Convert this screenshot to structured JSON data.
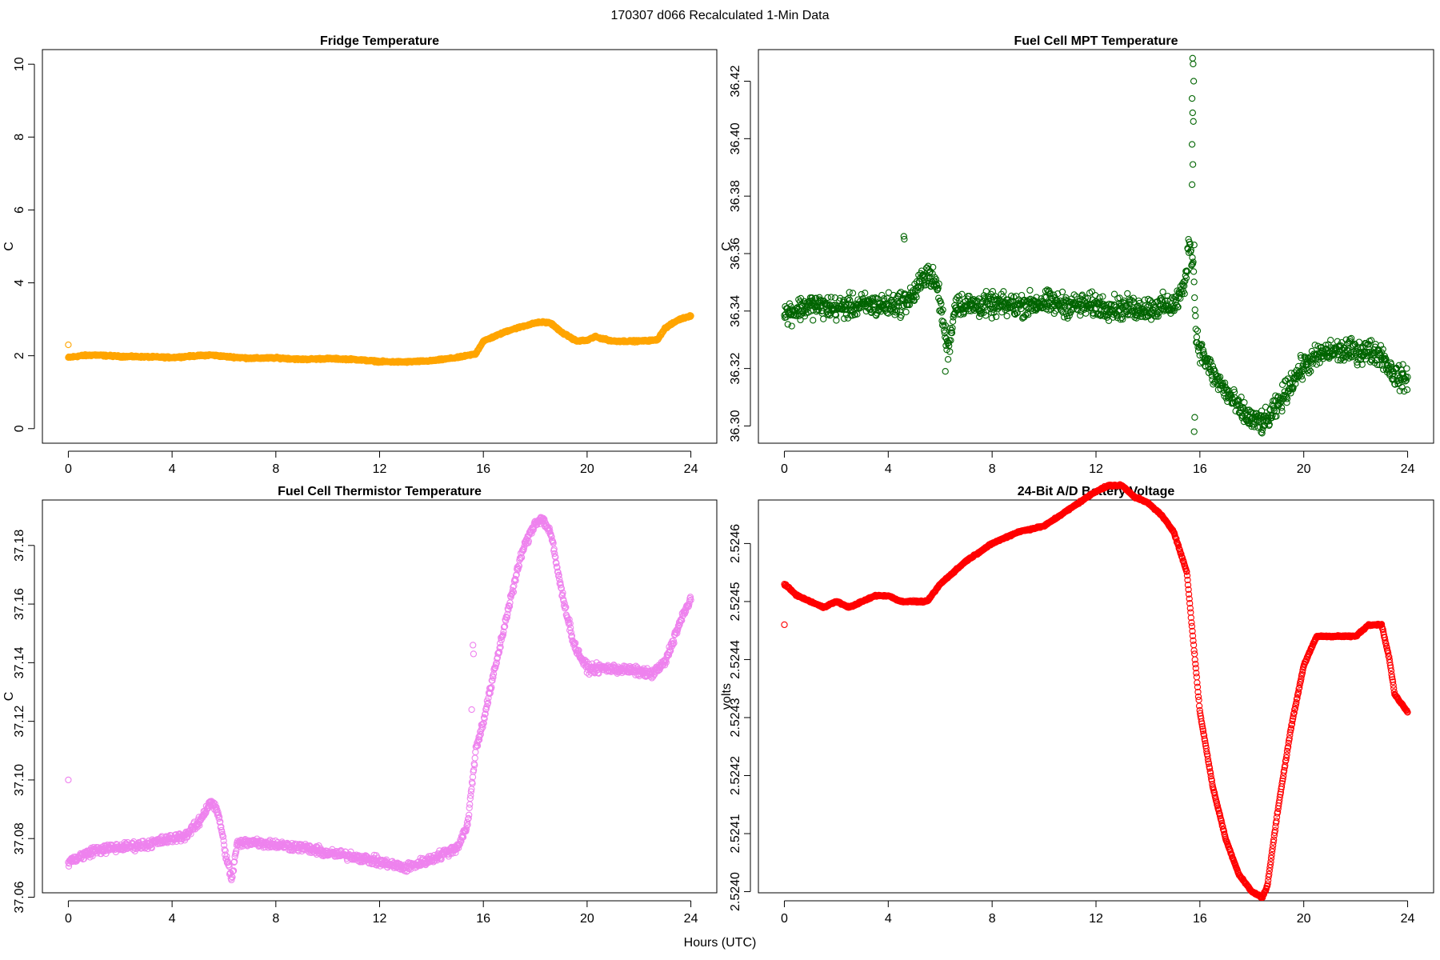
{
  "figure": {
    "title": "170307   d066   Recalculated 1-Min Data",
    "xlabel": "Hours (UTC)"
  },
  "chart_data": [
    {
      "type": "scatter",
      "title": "Fridge Temperature",
      "ylabel": "C",
      "color": "#FFA500",
      "xlim": [
        -1,
        25
      ],
      "ylim": [
        -0.4,
        10.4
      ],
      "xticks": [
        "0",
        "4",
        "8",
        "12",
        "16",
        "20",
        "24"
      ],
      "yticks": [
        "0",
        "2",
        "4",
        "6",
        "8",
        "10"
      ],
      "outliers": [
        [
          0.0,
          2.3
        ]
      ],
      "series": [
        {
          "x": [
            0,
            0.5,
            1,
            2,
            3,
            4,
            5,
            5.5,
            6,
            7,
            8,
            9,
            10,
            11,
            12,
            12.5,
            13,
            14,
            15,
            15.7,
            16,
            17,
            18,
            18.3,
            18.6,
            19,
            19.6,
            20,
            20.3,
            20.7,
            21,
            22,
            22.7,
            23,
            23.5,
            24
          ],
          "y": [
            1.95,
            2.0,
            2.02,
            1.98,
            1.97,
            1.95,
            2.0,
            2.02,
            1.98,
            1.93,
            1.94,
            1.9,
            1.92,
            1.9,
            1.84,
            1.83,
            1.83,
            1.86,
            1.95,
            2.05,
            2.4,
            2.7,
            2.9,
            2.92,
            2.9,
            2.65,
            2.4,
            2.42,
            2.52,
            2.45,
            2.4,
            2.4,
            2.43,
            2.75,
            2.98,
            3.1
          ],
          "density": 1440,
          "jitter": 0.02
        }
      ]
    },
    {
      "type": "scatter",
      "title": "Fuel Cell MPT Temperature",
      "ylabel": "C",
      "color": "#006400",
      "xlim": [
        -1,
        25
      ],
      "ylim": [
        36.294,
        36.431
      ],
      "xticks": [
        "0",
        "4",
        "8",
        "12",
        "16",
        "20",
        "24"
      ],
      "yticks": [
        "36.30",
        "36.32",
        "36.34",
        "36.36",
        "36.38",
        "36.40",
        "36.42"
      ],
      "outliers": [
        [
          4.6,
          36.366
        ],
        [
          4.62,
          36.365
        ],
        [
          15.72,
          36.428
        ],
        [
          15.74,
          36.426
        ],
        [
          15.76,
          36.42
        ],
        [
          15.7,
          36.414
        ],
        [
          15.72,
          36.409
        ],
        [
          15.75,
          36.406
        ],
        [
          15.7,
          36.398
        ],
        [
          15.73,
          36.391
        ],
        [
          15.7,
          36.384
        ],
        [
          15.78,
          36.363
        ],
        [
          15.8,
          36.303
        ],
        [
          15.78,
          36.298
        ],
        [
          6.2,
          36.319
        ]
      ],
      "series": [
        {
          "x": [
            0,
            1,
            2,
            3,
            4,
            4.6,
            5,
            5.5,
            5.9,
            6.1,
            6.3,
            6.6,
            7,
            8,
            9,
            10,
            11,
            12,
            13,
            14,
            15,
            15.4,
            15.6,
            15.75,
            15.85,
            16,
            16.5,
            17,
            17.5,
            18,
            18.5,
            19,
            19.5,
            20,
            20.5,
            21,
            22,
            22.5,
            23,
            23.3,
            23.6,
            24
          ],
          "y": [
            36.339,
            36.342,
            36.341,
            36.342,
            36.342,
            36.343,
            36.346,
            36.354,
            36.348,
            36.337,
            36.326,
            36.343,
            36.342,
            36.342,
            36.342,
            36.343,
            36.342,
            36.342,
            36.341,
            36.341,
            36.342,
            36.348,
            36.365,
            36.356,
            36.332,
            36.327,
            36.318,
            36.312,
            36.306,
            36.302,
            36.301,
            36.307,
            36.315,
            36.321,
            36.324,
            36.326,
            36.326,
            36.326,
            36.325,
            36.32,
            36.317,
            36.316
          ],
          "density": 1440,
          "jitter": 0.0035
        }
      ]
    },
    {
      "type": "scatter",
      "title": "Fuel Cell Thermistor Temperature",
      "ylabel": "C",
      "color": "#EE82EE",
      "xlim": [
        -1,
        25
      ],
      "ylim": [
        37.0615,
        37.1955
      ],
      "xticks": [
        "0",
        "4",
        "8",
        "12",
        "16",
        "20",
        "24"
      ],
      "yticks": [
        "37.06",
        "37.08",
        "37.10",
        "37.12",
        "37.14",
        "37.16",
        "37.18"
      ],
      "outliers": [
        [
          0.0,
          37.1
        ],
        [
          15.6,
          37.146
        ],
        [
          15.62,
          37.143
        ],
        [
          15.55,
          37.124
        ]
      ],
      "series": [
        {
          "x": [
            0,
            1,
            2,
            3,
            4,
            4.5,
            5,
            5.5,
            5.8,
            6.1,
            6.3,
            6.5,
            7,
            8,
            9,
            10,
            11,
            12,
            13,
            14,
            15,
            15.4,
            15.7,
            16,
            16.5,
            17,
            17.5,
            18,
            18.3,
            18.6,
            19,
            19.5,
            20,
            20.5,
            21,
            22,
            22.5,
            23,
            23.5,
            24
          ],
          "y": [
            37.072,
            37.076,
            37.077,
            37.078,
            37.08,
            37.081,
            37.085,
            37.093,
            37.088,
            37.073,
            37.066,
            37.078,
            37.079,
            37.078,
            37.077,
            37.075,
            37.074,
            37.072,
            37.07,
            37.073,
            37.077,
            37.085,
            37.11,
            37.12,
            37.14,
            37.16,
            37.178,
            37.188,
            37.189,
            37.184,
            37.165,
            37.146,
            37.138,
            37.138,
            37.138,
            37.137,
            37.136,
            37.14,
            37.152,
            37.162
          ],
          "density": 1440,
          "jitter": 0.0013
        }
      ]
    },
    {
      "type": "scatter",
      "title": "24-Bit A/D Battery Voltage",
      "ylabel": "volts",
      "color": "#FF0000",
      "xlim": [
        -1,
        25
      ],
      "ylim": [
        2.523998,
        2.524675
      ],
      "xticks": [
        "0",
        "4",
        "8",
        "12",
        "16",
        "20",
        "24"
      ],
      "yticks": [
        "2.5240",
        "2.5241",
        "2.5242",
        "2.5243",
        "2.5244",
        "2.5245",
        "2.5246"
      ],
      "outliers": [
        [
          0.0,
          2.52446
        ]
      ],
      "series": [
        {
          "x": [
            0,
            0.5,
            1,
            1.5,
            2,
            2.5,
            3,
            3.5,
            4,
            4.5,
            5,
            5.5,
            6,
            7,
            8,
            9,
            10,
            11,
            12,
            12.5,
            13,
            13.5,
            14,
            14.5,
            15,
            15.5,
            16,
            16.5,
            17,
            17.5,
            18,
            18.4,
            18.6,
            19,
            19.5,
            20,
            20.5,
            21,
            21.5,
            22,
            22.5,
            23,
            23.3,
            23.5,
            24
          ],
          "y": [
            2.52453,
            2.52451,
            2.5245,
            2.52449,
            2.5245,
            2.52449,
            2.5245,
            2.52451,
            2.52451,
            2.5245,
            2.5245,
            2.5245,
            2.52453,
            2.52457,
            2.5246,
            2.52462,
            2.52463,
            2.52466,
            2.52469,
            2.5247,
            2.5247,
            2.52468,
            2.52467,
            2.52465,
            2.52462,
            2.52455,
            2.52431,
            2.52418,
            2.52409,
            2.52403,
            2.524,
            2.52399,
            2.52401,
            2.52414,
            2.52428,
            2.52439,
            2.52444,
            2.52444,
            2.52444,
            2.52444,
            2.52446,
            2.52446,
            2.5244,
            2.52434,
            2.52431
          ],
          "density": 1440,
          "jitter": 1.2e-06
        }
      ]
    }
  ]
}
